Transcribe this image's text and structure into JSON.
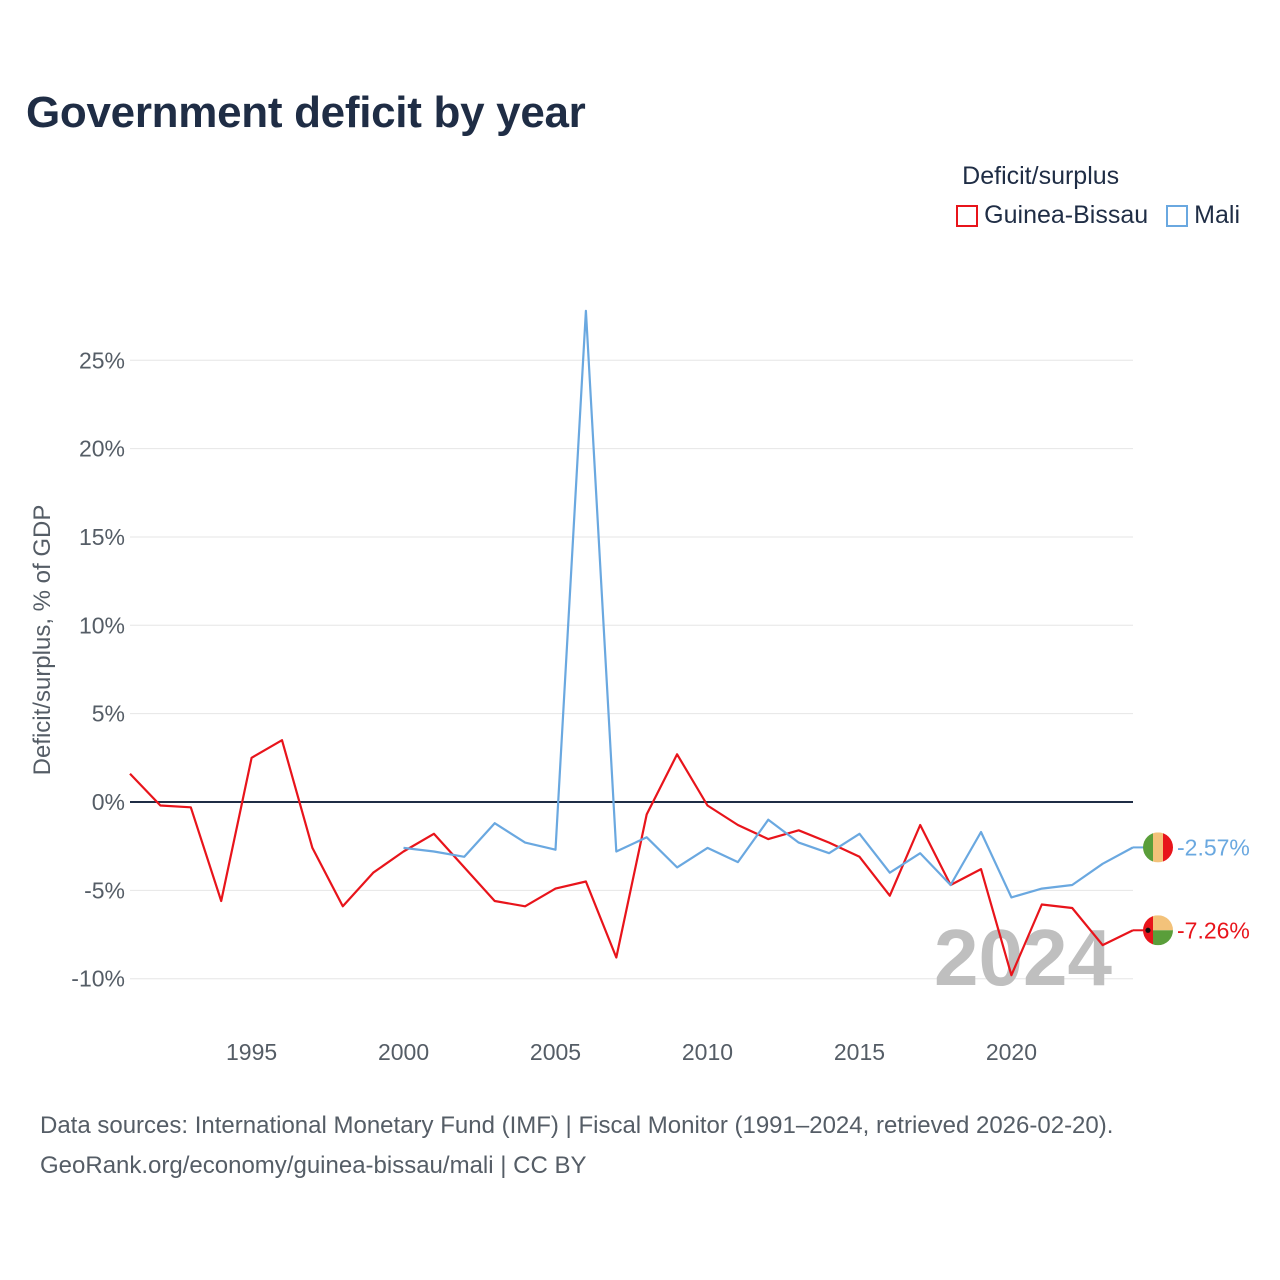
{
  "title": "Government deficit by year",
  "legend": {
    "title": "Deficit/surplus",
    "items": [
      {
        "label": "Guinea-Bissau",
        "color": "#e8141b"
      },
      {
        "label": "Mali",
        "color": "#6aa8e0"
      }
    ]
  },
  "chart_data": {
    "type": "line",
    "title": "Government deficit by year",
    "xlabel": "",
    "ylabel": "Deficit/surplus, % of GDP",
    "xlim": [
      1991,
      2024
    ],
    "ylim": [
      -11.5,
      29
    ],
    "x_ticks": [
      1995,
      2000,
      2005,
      2010,
      2015,
      2020
    ],
    "x_tick_labels": [
      "1995",
      "2000",
      "2005",
      "2010",
      "2015",
      "2020"
    ],
    "y_ticks": [
      -10,
      -5,
      0,
      5,
      10,
      15,
      20,
      25
    ],
    "y_tick_labels": [
      "-10%",
      "-5%",
      "0%",
      "5%",
      "10%",
      "15%",
      "20%",
      "25%"
    ],
    "grid": true,
    "legend_position": "top-right",
    "current_year": "2024",
    "series": [
      {
        "name": "Guinea-Bissau",
        "color": "#e8141b",
        "end_label": "-7.26%",
        "x": [
          1991,
          1992,
          1993,
          1994,
          1995,
          1996,
          1997,
          1998,
          1999,
          2000,
          2001,
          2002,
          2003,
          2004,
          2005,
          2006,
          2007,
          2008,
          2009,
          2010,
          2011,
          2012,
          2013,
          2014,
          2015,
          2016,
          2017,
          2018,
          2019,
          2020,
          2021,
          2022,
          2023,
          2024
        ],
        "values": [
          1.6,
          -0.2,
          -0.3,
          -5.6,
          2.5,
          3.5,
          -2.6,
          -5.9,
          -4.0,
          -2.8,
          -1.8,
          -3.7,
          -5.6,
          -5.9,
          -4.9,
          -4.5,
          -8.8,
          -0.7,
          2.7,
          -0.2,
          -1.3,
          -2.1,
          -1.6,
          -2.3,
          -3.1,
          -5.3,
          -1.3,
          -4.7,
          -3.8,
          -9.8,
          -5.8,
          -6.0,
          -8.1,
          -7.26
        ]
      },
      {
        "name": "Mali",
        "color": "#6aa8e0",
        "end_label": "-2.57%",
        "x": [
          2000,
          2001,
          2002,
          2003,
          2004,
          2005,
          2006,
          2007,
          2008,
          2009,
          2010,
          2011,
          2012,
          2013,
          2014,
          2015,
          2016,
          2017,
          2018,
          2019,
          2020,
          2021,
          2022,
          2023,
          2024
        ],
        "values": [
          -2.6,
          -2.8,
          -3.1,
          -1.2,
          -2.3,
          -2.7,
          27.8,
          -2.8,
          -2.0,
          -3.7,
          -2.6,
          -3.4,
          -1.0,
          -2.3,
          -2.9,
          -1.8,
          -4.0,
          -2.9,
          -4.7,
          -1.7,
          -5.4,
          -4.9,
          -4.7,
          -3.5,
          -2.57
        ]
      }
    ]
  },
  "footer": {
    "line1": "Data sources: International Monetary Fund (IMF) | Fiscal Monitor (1991–2024, retrieved 2026-02-20).",
    "line2": "GeoRank.org/economy/guinea-bissau/mali | CC BY"
  }
}
